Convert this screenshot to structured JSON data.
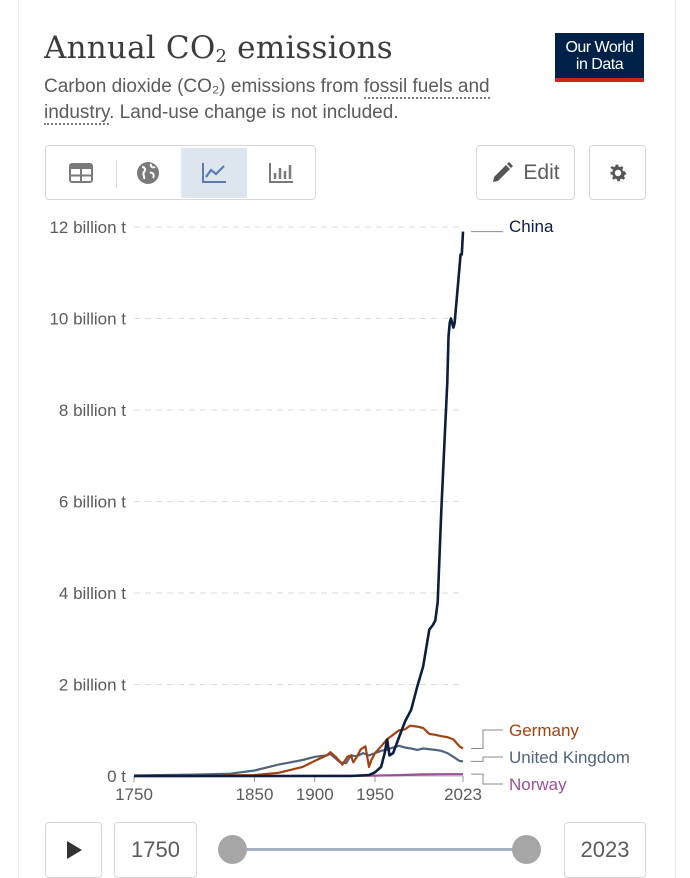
{
  "header": {
    "title_main": "Annual CO",
    "title_sub": "2",
    "title_end": " emissions",
    "subtitle_a": "Carbon dioxide (CO₂) emissions from ",
    "subtitle_link": "fossil fuels and industry",
    "subtitle_b": ". Land-use change is not included.",
    "logo_line1": "Our World",
    "logo_line2": "in Data"
  },
  "toolbar": {
    "tabs": [
      "table-icon",
      "globe-icon",
      "line-chart-icon",
      "bar-chart-icon"
    ],
    "active_tab": "line-chart-icon",
    "edit_label": "Edit"
  },
  "timeline": {
    "start_label": "1750",
    "end_label": "2023",
    "start_fraction": 0,
    "end_fraction": 1
  },
  "colors": {
    "China": "#0b1e3f",
    "Germany": "#a2420f",
    "United Kingdom": "#51647d",
    "Norway": "#9a4f96",
    "grid": "#dddddd"
  },
  "chart_data": {
    "type": "line",
    "title": "Annual CO₂ emissions",
    "xlabel": "",
    "ylabel": "",
    "xlim": [
      1750,
      2023
    ],
    "ylim": [
      0,
      12
    ],
    "y_ticks": [
      {
        "v": 0,
        "label": "0 t"
      },
      {
        "v": 2,
        "label": "2 billion t"
      },
      {
        "v": 4,
        "label": "4 billion t"
      },
      {
        "v": 6,
        "label": "6 billion t"
      },
      {
        "v": 8,
        "label": "8 billion t"
      },
      {
        "v": 10,
        "label": "10 billion t"
      },
      {
        "v": 12,
        "label": "12 billion t"
      }
    ],
    "x_ticks": [
      {
        "v": 1750,
        "label": "1750"
      },
      {
        "v": 1850,
        "label": "1850"
      },
      {
        "v": 1900,
        "label": "1900"
      },
      {
        "v": 1950,
        "label": "1950"
      },
      {
        "v": 2023,
        "label": "2023"
      }
    ],
    "grid": "horizontal-dashed",
    "legend": "inline-right",
    "series": [
      {
        "name": "China",
        "points": [
          [
            1750,
            0
          ],
          [
            1900,
            0
          ],
          [
            1930,
            0
          ],
          [
            1945,
            0.02
          ],
          [
            1950,
            0.08
          ],
          [
            1955,
            0.2
          ],
          [
            1958,
            0.5
          ],
          [
            1960,
            0.8
          ],
          [
            1962,
            0.45
          ],
          [
            1965,
            0.5
          ],
          [
            1970,
            0.85
          ],
          [
            1975,
            1.2
          ],
          [
            1980,
            1.45
          ],
          [
            1985,
            1.95
          ],
          [
            1990,
            2.4
          ],
          [
            1995,
            3.2
          ],
          [
            1998,
            3.3
          ],
          [
            2000,
            3.4
          ],
          [
            2002,
            3.8
          ],
          [
            2005,
            5.8
          ],
          [
            2008,
            7.5
          ],
          [
            2010,
            8.6
          ],
          [
            2011,
            9.6
          ],
          [
            2012,
            9.9
          ],
          [
            2013,
            10.0
          ],
          [
            2015,
            9.8
          ],
          [
            2016,
            9.9
          ],
          [
            2018,
            10.5
          ],
          [
            2020,
            11.1
          ],
          [
            2021,
            11.4
          ],
          [
            2022,
            11.4
          ],
          [
            2023,
            11.9
          ]
        ]
      },
      {
        "name": "Germany",
        "points": [
          [
            1750,
            0
          ],
          [
            1800,
            0
          ],
          [
            1850,
            0.02
          ],
          [
            1870,
            0.07
          ],
          [
            1890,
            0.2
          ],
          [
            1900,
            0.33
          ],
          [
            1910,
            0.45
          ],
          [
            1913,
            0.52
          ],
          [
            1918,
            0.4
          ],
          [
            1923,
            0.25
          ],
          [
            1927,
            0.42
          ],
          [
            1930,
            0.45
          ],
          [
            1932,
            0.3
          ],
          [
            1935,
            0.42
          ],
          [
            1938,
            0.58
          ],
          [
            1942,
            0.65
          ],
          [
            1945,
            0.2
          ],
          [
            1947,
            0.35
          ],
          [
            1950,
            0.5
          ],
          [
            1955,
            0.65
          ],
          [
            1960,
            0.8
          ],
          [
            1965,
            0.9
          ],
          [
            1970,
            1.0
          ],
          [
            1975,
            1.02
          ],
          [
            1979,
            1.1
          ],
          [
            1985,
            1.08
          ],
          [
            1990,
            1.05
          ],
          [
            1995,
            0.92
          ],
          [
            2000,
            0.9
          ],
          [
            2005,
            0.87
          ],
          [
            2010,
            0.85
          ],
          [
            2015,
            0.8
          ],
          [
            2020,
            0.65
          ],
          [
            2023,
            0.6
          ]
        ]
      },
      {
        "name": "United Kingdom",
        "points": [
          [
            1750,
            0.01
          ],
          [
            1800,
            0.03
          ],
          [
            1830,
            0.05
          ],
          [
            1850,
            0.12
          ],
          [
            1870,
            0.25
          ],
          [
            1890,
            0.35
          ],
          [
            1900,
            0.42
          ],
          [
            1910,
            0.45
          ],
          [
            1913,
            0.48
          ],
          [
            1921,
            0.3
          ],
          [
            1926,
            0.28
          ],
          [
            1930,
            0.45
          ],
          [
            1935,
            0.43
          ],
          [
            1940,
            0.5
          ],
          [
            1945,
            0.45
          ],
          [
            1950,
            0.5
          ],
          [
            1955,
            0.55
          ],
          [
            1960,
            0.58
          ],
          [
            1965,
            0.62
          ],
          [
            1970,
            0.66
          ],
          [
            1975,
            0.62
          ],
          [
            1980,
            0.6
          ],
          [
            1985,
            0.57
          ],
          [
            1990,
            0.6
          ],
          [
            2000,
            0.57
          ],
          [
            2005,
            0.55
          ],
          [
            2010,
            0.5
          ],
          [
            2015,
            0.42
          ],
          [
            2020,
            0.33
          ],
          [
            2023,
            0.32
          ]
        ]
      },
      {
        "name": "Norway",
        "points": [
          [
            1750,
            0
          ],
          [
            1850,
            0
          ],
          [
            1900,
            0.003
          ],
          [
            1950,
            0.008
          ],
          [
            1970,
            0.02
          ],
          [
            1990,
            0.035
          ],
          [
            2010,
            0.04
          ],
          [
            2023,
            0.04
          ]
        ]
      }
    ],
    "labels": [
      {
        "series": "China",
        "text": "China"
      },
      {
        "series": "Germany",
        "text": "Germany"
      },
      {
        "series": "United Kingdom",
        "text": "United Kingdom"
      },
      {
        "series": "Norway",
        "text": "Norway"
      }
    ]
  }
}
